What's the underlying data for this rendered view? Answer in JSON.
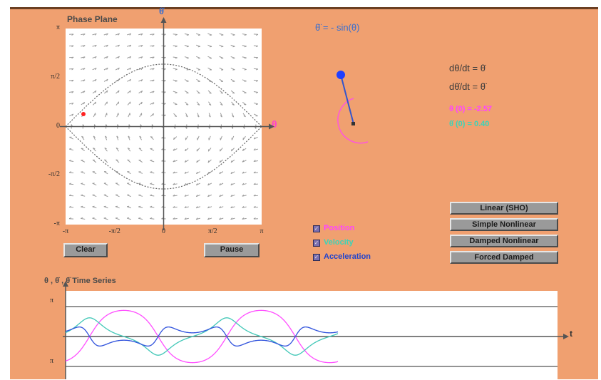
{
  "phase_plane": {
    "title": "Phase Plane",
    "y_axis_label": "θ̇",
    "x_axis_label": "θ",
    "y_ticks": [
      "π",
      "π/2",
      "0",
      "-π/2",
      "-π"
    ],
    "x_ticks": [
      "-π",
      "-π/2",
      "0",
      "π/2",
      "π"
    ]
  },
  "equations": {
    "ode": "θ̈ = - sin(θ)",
    "d_theta": "dθ/dt = θ̇",
    "d_theta_dot": "dθ̇/dt = θ̈",
    "theta0": "θ (0) = -2.57",
    "thetadot0": "θ̇ (0) = 0.40"
  },
  "buttons": {
    "clear": "Clear",
    "pause": "Pause",
    "linear": "Linear (SHO)",
    "simple_nonlinear": "Simple Nonlinear",
    "damped_nonlinear": "Damped Nonlinear",
    "forced_damped": "Forced Damped"
  },
  "legend": {
    "position": "Position",
    "velocity": "Velocity",
    "acceleration": "Acceleration"
  },
  "time_series": {
    "title": "θ , θ̇ , θ̈  Time Series",
    "y_ticks": [
      "π",
      "π"
    ],
    "x_axis_label": "t"
  },
  "colors": {
    "background": "#f0a070",
    "position": "#ff50ff",
    "velocity": "#44c8b8",
    "acceleration": "#3355dd",
    "pendulum_bob": "#1f3fff"
  }
}
